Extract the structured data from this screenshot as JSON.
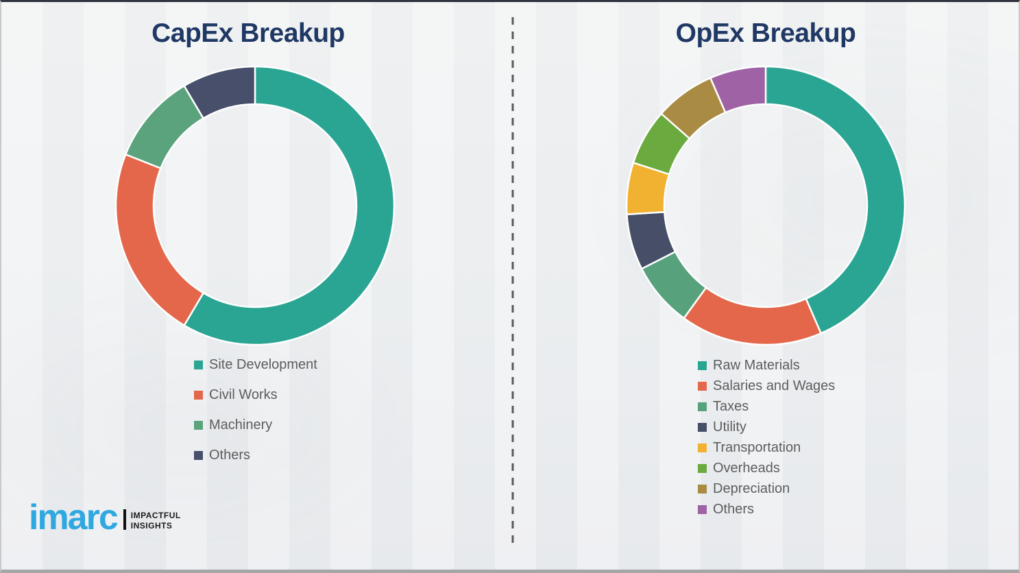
{
  "style": {
    "background_color": "#eef0f1",
    "title_color": "#1F3864",
    "legend_text_color": "#5d5d5d",
    "divider_color": "#595959",
    "slice_gap_color": "#ffffff"
  },
  "chart_data": [
    {
      "type": "pie",
      "subtype": "donut",
      "title": "CapEx Breakup",
      "categories": [
        "Site Development",
        "Civil Works",
        "Machinery",
        "Others"
      ],
      "values": [
        58.5,
        22.5,
        10.5,
        8.5
      ],
      "unit": "percent-estimated",
      "colors": [
        "#2BA593",
        "#E4674B",
        "#5AA37D",
        "#474F6B"
      ],
      "start_angle_deg": 0,
      "direction": "clockwise",
      "inner_radius_ratio": 0.73,
      "data_labels": false,
      "legend_position": "below-left"
    },
    {
      "type": "pie",
      "subtype": "donut",
      "title": "OpEx Breakup",
      "categories": [
        "Raw Materials",
        "Salaries and Wages",
        "Taxes",
        "Utility",
        "Transportation",
        "Overheads",
        "Depreciation",
        "Others"
      ],
      "values": [
        43.5,
        16.5,
        7.5,
        6.5,
        6.0,
        6.5,
        7.0,
        6.5
      ],
      "unit": "percent-estimated",
      "colors": [
        "#2BA593",
        "#E4674B",
        "#57A27C",
        "#474E68",
        "#F2B231",
        "#6BAA3E",
        "#A98B43",
        "#9F62A5"
      ],
      "start_angle_deg": 0,
      "direction": "clockwise",
      "inner_radius_ratio": 0.73,
      "data_labels": false,
      "legend_position": "below-left"
    }
  ],
  "logo": {
    "brand": "imarc",
    "brand_color": "#2FA8E1",
    "tagline_line1": "IMPACTFUL",
    "tagline_line2": "INSIGHTS"
  }
}
